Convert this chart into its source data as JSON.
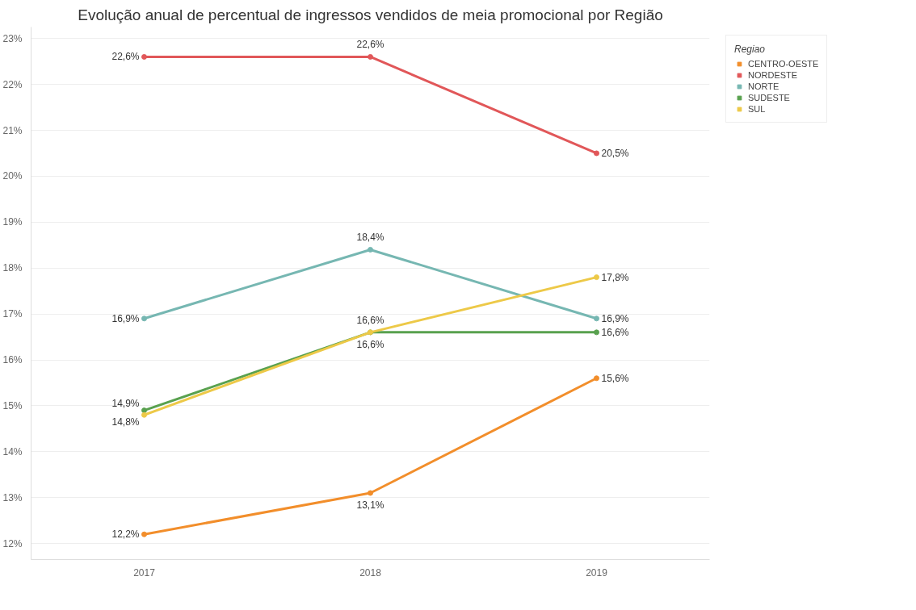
{
  "chart_data": {
    "type": "line",
    "title": "Evolução anual de percentual de ingressos vendidos de meia promocional por Região",
    "categories": [
      "2017",
      "2018",
      "2019"
    ],
    "series": [
      {
        "name": "CENTRO-OESTE",
        "color": "#f28e2b",
        "values": [
          12.2,
          13.1,
          15.6
        ],
        "value_labels": [
          "12,2%",
          "13,1%",
          "15,6%"
        ]
      },
      {
        "name": "NORDESTE",
        "color": "#e15759",
        "values": [
          22.6,
          22.6,
          20.5
        ],
        "value_labels": [
          "22,6%",
          "22,6%",
          "20,5%"
        ]
      },
      {
        "name": "NORTE",
        "color": "#76b7b2",
        "values": [
          16.9,
          18.4,
          16.9
        ],
        "value_labels": [
          "16,9%",
          "18,4%",
          "16,9%"
        ]
      },
      {
        "name": "SUDESTE",
        "color": "#59a14f",
        "values": [
          14.9,
          16.6,
          16.6
        ],
        "value_labels": [
          "14,9%",
          "16,6%",
          "16,6%"
        ]
      },
      {
        "name": "SUL",
        "color": "#edc948",
        "values": [
          14.8,
          16.6,
          17.8
        ],
        "value_labels": [
          "14,8%",
          "16,6%",
          "17,8%"
        ]
      }
    ],
    "ylim": [
      11.65,
      23.25
    ],
    "yticks": [
      {
        "value": 12,
        "label": "12%"
      },
      {
        "value": 13,
        "label": "13%"
      },
      {
        "value": 14,
        "label": "14%"
      },
      {
        "value": 15,
        "label": "15%"
      },
      {
        "value": 16,
        "label": "16%"
      },
      {
        "value": 17,
        "label": "17%"
      },
      {
        "value": 18,
        "label": "18%"
      },
      {
        "value": 19,
        "label": "19%"
      },
      {
        "value": 20,
        "label": "20%"
      },
      {
        "value": 21,
        "label": "21%"
      },
      {
        "value": 22,
        "label": "22%"
      },
      {
        "value": 23,
        "label": "23%"
      }
    ],
    "grid": "y",
    "legend": "right",
    "legend_title": "Regiao",
    "marker": "circle",
    "line_style": "solid"
  }
}
